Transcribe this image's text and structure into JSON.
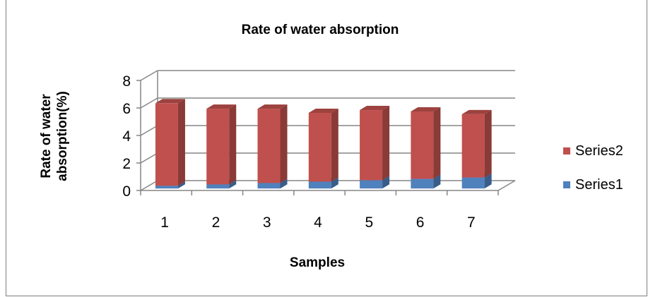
{
  "chart_data": {
    "type": "bar",
    "stacked": true,
    "three_d": true,
    "title": "Rate of water absorption",
    "xlabel": "Samples",
    "ylabel_lines": [
      "Rate of water",
      "absorption(%)"
    ],
    "categories": [
      "1",
      "2",
      "3",
      "4",
      "5",
      "6",
      "7"
    ],
    "series": [
      {
        "name": "Series1",
        "color": "#4f81bd",
        "values": [
          0.2,
          0.3,
          0.4,
          0.5,
          0.6,
          0.7,
          0.8
        ]
      },
      {
        "name": "Series2",
        "color": "#c0504d",
        "values": [
          6.0,
          5.5,
          5.4,
          5.0,
          5.1,
          4.9,
          4.6
        ]
      }
    ],
    "ylim": [
      0,
      8
    ],
    "yticks": [
      "0",
      "2",
      "4",
      "6",
      "8"
    ],
    "grid": true,
    "legend_position": "right"
  }
}
